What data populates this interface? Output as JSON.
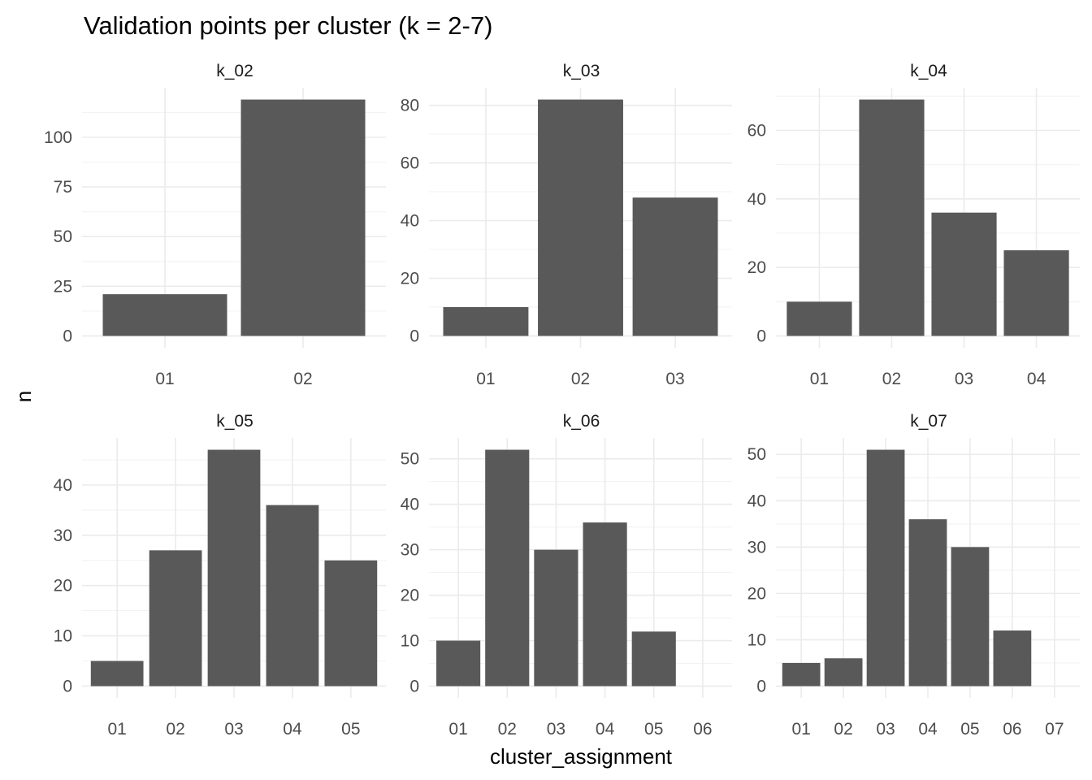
{
  "chart_data": {
    "type": "bar",
    "title": "Validation points per cluster (k = 2-7)",
    "xlabel": "cluster_assignment",
    "ylabel": "n",
    "grid": true,
    "bar_color": "#595959",
    "panels": [
      {
        "name": "k_02",
        "categories": [
          "01",
          "02"
        ],
        "values": [
          21,
          119
        ],
        "ylim": [
          0,
          119
        ],
        "yticks": [
          0,
          25,
          50,
          75,
          100
        ]
      },
      {
        "name": "k_03",
        "categories": [
          "01",
          "02",
          "03"
        ],
        "values": [
          10,
          82,
          48
        ],
        "ylim": [
          0,
          82
        ],
        "yticks": [
          0,
          20,
          40,
          60,
          80
        ]
      },
      {
        "name": "k_04",
        "categories": [
          "01",
          "02",
          "03",
          "04"
        ],
        "values": [
          10,
          69,
          36,
          25
        ],
        "ylim": [
          0,
          69
        ],
        "yticks": [
          0,
          20,
          40,
          60
        ]
      },
      {
        "name": "k_05",
        "categories": [
          "01",
          "02",
          "03",
          "04",
          "05"
        ],
        "values": [
          5,
          27,
          47,
          36,
          25
        ],
        "ylim": [
          0,
          47
        ],
        "yticks": [
          0,
          10,
          20,
          30,
          40
        ]
      },
      {
        "name": "k_06",
        "categories": [
          "01",
          "02",
          "03",
          "04",
          "05",
          "06"
        ],
        "values": [
          10,
          52,
          30,
          36,
          12,
          0
        ],
        "ylim": [
          0,
          52
        ],
        "yticks": [
          0,
          10,
          20,
          30,
          40,
          50
        ]
      },
      {
        "name": "k_07",
        "categories": [
          "01",
          "02",
          "03",
          "04",
          "05",
          "06",
          "07"
        ],
        "values": [
          5,
          6,
          51,
          36,
          30,
          12,
          0
        ],
        "ylim": [
          0,
          51
        ],
        "yticks": [
          0,
          10,
          20,
          30,
          40,
          50
        ]
      }
    ]
  }
}
